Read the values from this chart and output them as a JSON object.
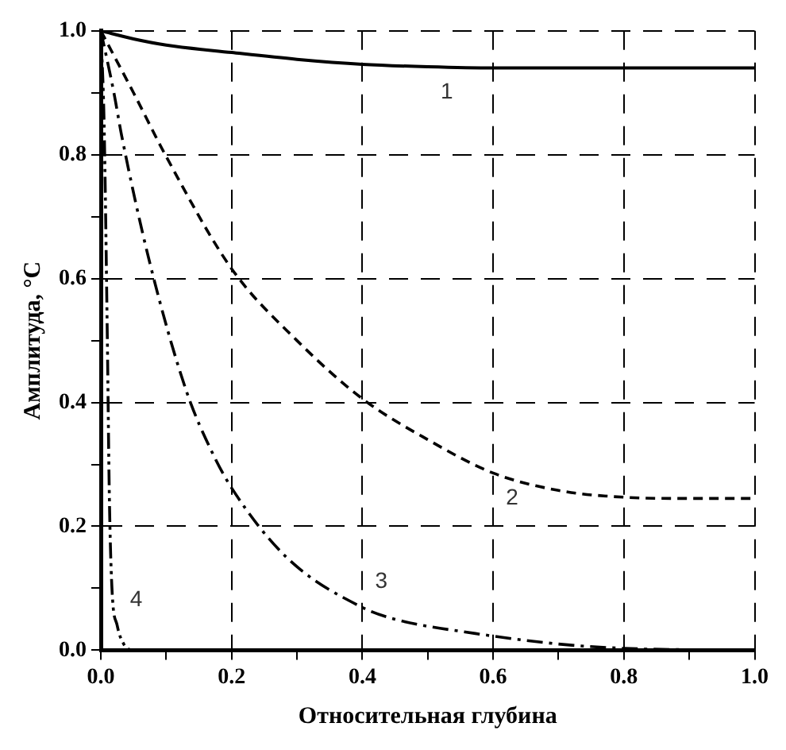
{
  "chart_data": {
    "type": "line",
    "xlabel": "Относительная глубина",
    "ylabel": "Амплитуда, °C",
    "xlim": [
      0,
      1
    ],
    "ylim": [
      0,
      1
    ],
    "xticks": [
      {
        "value": 0,
        "label": "0.0"
      },
      {
        "value": 0.1,
        "label": null
      },
      {
        "value": 0.2,
        "label": "0.2"
      },
      {
        "value": 0.3,
        "label": null
      },
      {
        "value": 0.4,
        "label": "0.4"
      },
      {
        "value": 0.5,
        "label": null
      },
      {
        "value": 0.6,
        "label": "0.6"
      },
      {
        "value": 0.7,
        "label": null
      },
      {
        "value": 0.8,
        "label": "0.8"
      },
      {
        "value": 0.9,
        "label": null
      },
      {
        "value": 1,
        "label": "1.0"
      }
    ],
    "yticks": [
      {
        "value": 0,
        "label": "0.0"
      },
      {
        "value": 0.1,
        "label": null
      },
      {
        "value": 0.2,
        "label": "0.2"
      },
      {
        "value": 0.3,
        "label": null
      },
      {
        "value": 0.4,
        "label": "0.4"
      },
      {
        "value": 0.5,
        "label": null
      },
      {
        "value": 0.6,
        "label": "0.6"
      },
      {
        "value": 0.7,
        "label": null
      },
      {
        "value": 0.8,
        "label": "0.8"
      },
      {
        "value": 0.9,
        "label": null
      },
      {
        "value": 1,
        "label": "1.0"
      }
    ],
    "grid": true,
    "legend": false,
    "marker": "none",
    "series": [
      {
        "name": "1",
        "color": "#000000",
        "line_style": "solid",
        "x": [
          0,
          0.05,
          0.1,
          0.2,
          0.3,
          0.4,
          0.5,
          0.6,
          0.8,
          1.0
        ],
        "values": [
          1.0,
          0.987,
          0.977,
          0.965,
          0.954,
          0.946,
          0.942,
          0.94,
          0.94,
          0.94
        ]
      },
      {
        "name": "2",
        "color": "#000000",
        "line_style": "dashed",
        "x": [
          0,
          0.05,
          0.1,
          0.2,
          0.3,
          0.4,
          0.5,
          0.6,
          0.7,
          0.8,
          0.9,
          1.0
        ],
        "values": [
          1.0,
          0.9,
          0.797,
          0.616,
          0.5,
          0.406,
          0.34,
          0.286,
          0.258,
          0.247,
          0.245,
          0.245
        ]
      },
      {
        "name": "3",
        "color": "#000000",
        "line_style": "dashdot",
        "x": [
          0,
          0.02,
          0.032,
          0.075,
          0.131,
          0.17,
          0.2,
          0.284,
          0.4,
          0.45,
          0.573,
          0.7,
          0.8,
          1.0
        ],
        "values": [
          1.0,
          0.9,
          0.83,
          0.625,
          0.418,
          0.32,
          0.262,
          0.15,
          0.069,
          0.05,
          0.027,
          0.01,
          0.003,
          0
        ]
      },
      {
        "name": "4",
        "color": "#000000",
        "line_style": "dashdotdot",
        "x": [
          0,
          0.005,
          0.01,
          0.013,
          0.017,
          0.025,
          0.035,
          0.05,
          0.1
        ],
        "values": [
          1.0,
          0.85,
          0.5,
          0.25,
          0.1,
          0.04,
          0.01,
          0,
          0
        ]
      }
    ]
  }
}
